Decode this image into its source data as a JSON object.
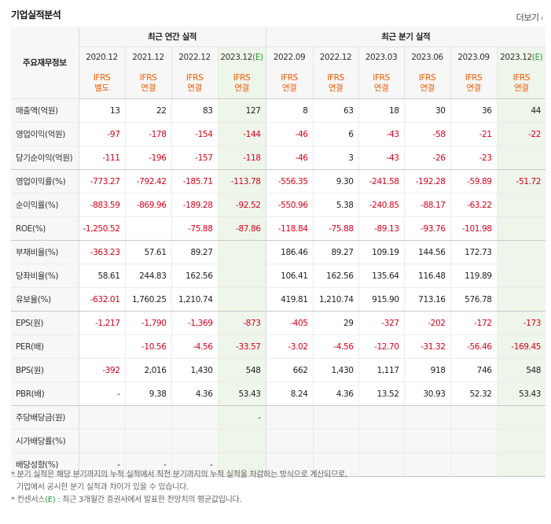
{
  "header": {
    "title": "기업실적분석",
    "more_label": "더보기"
  },
  "table": {
    "row_head_label": "주요재무정보",
    "group_annual": "최근 연간 실적",
    "group_quarter": "최근 분기 실적",
    "columns": [
      {
        "period": "2020.12",
        "est": false,
        "basis1": "IFRS",
        "basis2": "별도"
      },
      {
        "period": "2021.12",
        "est": false,
        "basis1": "IFRS",
        "basis2": "연결"
      },
      {
        "period": "2022.12",
        "est": false,
        "basis1": "IFRS",
        "basis2": "연결"
      },
      {
        "period": "2023.12",
        "est": true,
        "basis1": "IFRS",
        "basis2": "연결"
      },
      {
        "period": "2022.09",
        "est": false,
        "basis1": "IFRS",
        "basis2": "연결"
      },
      {
        "period": "2022.12",
        "est": false,
        "basis1": "IFRS",
        "basis2": "연결"
      },
      {
        "period": "2023.03",
        "est": false,
        "basis1": "IFRS",
        "basis2": "연결"
      },
      {
        "period": "2023.06",
        "est": false,
        "basis1": "IFRS",
        "basis2": "연결"
      },
      {
        "period": "2023.09",
        "est": false,
        "basis1": "IFRS",
        "basis2": "연결"
      },
      {
        "period": "2023.12",
        "est": true,
        "basis1": "IFRS",
        "basis2": "연결"
      }
    ],
    "est_mark": "(E)",
    "rows": [
      {
        "label": "매출액(억원)",
        "values": [
          "13",
          "22",
          "83",
          "127",
          "8",
          "63",
          "18",
          "30",
          "36",
          "44"
        ],
        "group_end": false
      },
      {
        "label": "영업이익(억원)",
        "values": [
          "-97",
          "-178",
          "-154",
          "-144",
          "-46",
          "6",
          "-43",
          "-58",
          "-21",
          "-22"
        ],
        "group_end": false
      },
      {
        "label": "당기순이익(억원)",
        "values": [
          "-111",
          "-196",
          "-157",
          "-118",
          "-46",
          "3",
          "-43",
          "-26",
          "-23",
          ""
        ],
        "group_end": true
      },
      {
        "label": "영업이익률(%)",
        "values": [
          "-773.27",
          "-792.42",
          "-185.71",
          "-113.78",
          "-556.35",
          "9.30",
          "-241.58",
          "-192.28",
          "-59.89",
          "-51.72"
        ],
        "group_end": false
      },
      {
        "label": "순이익률(%)",
        "values": [
          "-883.59",
          "-869.96",
          "-189.28",
          "-92.52",
          "-550.96",
          "5.38",
          "-240.85",
          "-88.17",
          "-63.22",
          ""
        ],
        "group_end": false
      },
      {
        "label": "ROE(%)",
        "values": [
          "-1,250.52",
          "",
          "-75.88",
          "-87.86",
          "-118.84",
          "-75.88",
          "-89.13",
          "-93.76",
          "-101.98",
          ""
        ],
        "group_end": true
      },
      {
        "label": "부채비율(%)",
        "values": [
          "-363.23",
          "57.61",
          "89.27",
          "",
          "186.46",
          "89.27",
          "109.19",
          "144.56",
          "172.73",
          ""
        ],
        "group_end": false
      },
      {
        "label": "당좌비율(%)",
        "values": [
          "58.61",
          "244.83",
          "162.56",
          "",
          "106.41",
          "162.56",
          "135.64",
          "116.48",
          "119.89",
          ""
        ],
        "group_end": false
      },
      {
        "label": "유보율(%)",
        "values": [
          "-632.01",
          "1,760.25",
          "1,210.74",
          "",
          "419.81",
          "1,210.74",
          "915.90",
          "713.16",
          "576.78",
          ""
        ],
        "group_end": true
      },
      {
        "label": "EPS(원)",
        "values": [
          "-1,217",
          "-1,790",
          "-1,369",
          "-873",
          "-405",
          "29",
          "-327",
          "-202",
          "-172",
          "-173"
        ],
        "group_end": false
      },
      {
        "label": "PER(배)",
        "values": [
          "",
          "-10.56",
          "-4.56",
          "-33.57",
          "-3.02",
          "-4.56",
          "-12.70",
          "-31.32",
          "-56.46",
          "-169.45"
        ],
        "group_end": false
      },
      {
        "label": "BPS(원)",
        "values": [
          "-392",
          "2,016",
          "1,430",
          "548",
          "662",
          "1,430",
          "1,117",
          "918",
          "746",
          "548"
        ],
        "group_end": false
      },
      {
        "label": "PBR(배)",
        "values": [
          "-",
          "9.38",
          "4.36",
          "53.43",
          "8.24",
          "4.36",
          "13.52",
          "30.93",
          "52.32",
          "53.43"
        ],
        "group_end": true
      },
      {
        "label": "주당배당금(원)",
        "values": [
          "",
          "",
          "",
          "-",
          "",
          "",
          "",
          "",
          "",
          ""
        ],
        "group_end": false,
        "shade": true
      },
      {
        "label": "시가배당률(%)",
        "values": [
          "",
          "",
          "",
          "",
          "",
          "",
          "",
          "",
          "",
          ""
        ],
        "group_end": false,
        "shade": true
      },
      {
        "label": "배당성향(%)",
        "values": [
          "-",
          "-",
          "-",
          "",
          "",
          "",
          "",
          "",
          "",
          ""
        ],
        "group_end": true,
        "shade": true
      }
    ]
  },
  "notes": {
    "line1": "* 분기 실적은 해당 분기까지의 누적 실적에서 직전 분기까지의 누적 실적을 차감하는 방식으로 계산되므로,",
    "line2": "기업에서 공시한 분기 실적과 차이가 있을 수 있습니다.",
    "line3_prefix": "* 컨센서스",
    "line3_mark": "(E)",
    "line3_suffix": ": 최근 3개월간 증권사에서 발표한 전망치의 평균값입니다."
  },
  "colors": {
    "negative": "#d6001c",
    "basis": "#f05a00",
    "estimate_bg": "#eef5ea",
    "estimate_mark": "#1f9a3b"
  }
}
